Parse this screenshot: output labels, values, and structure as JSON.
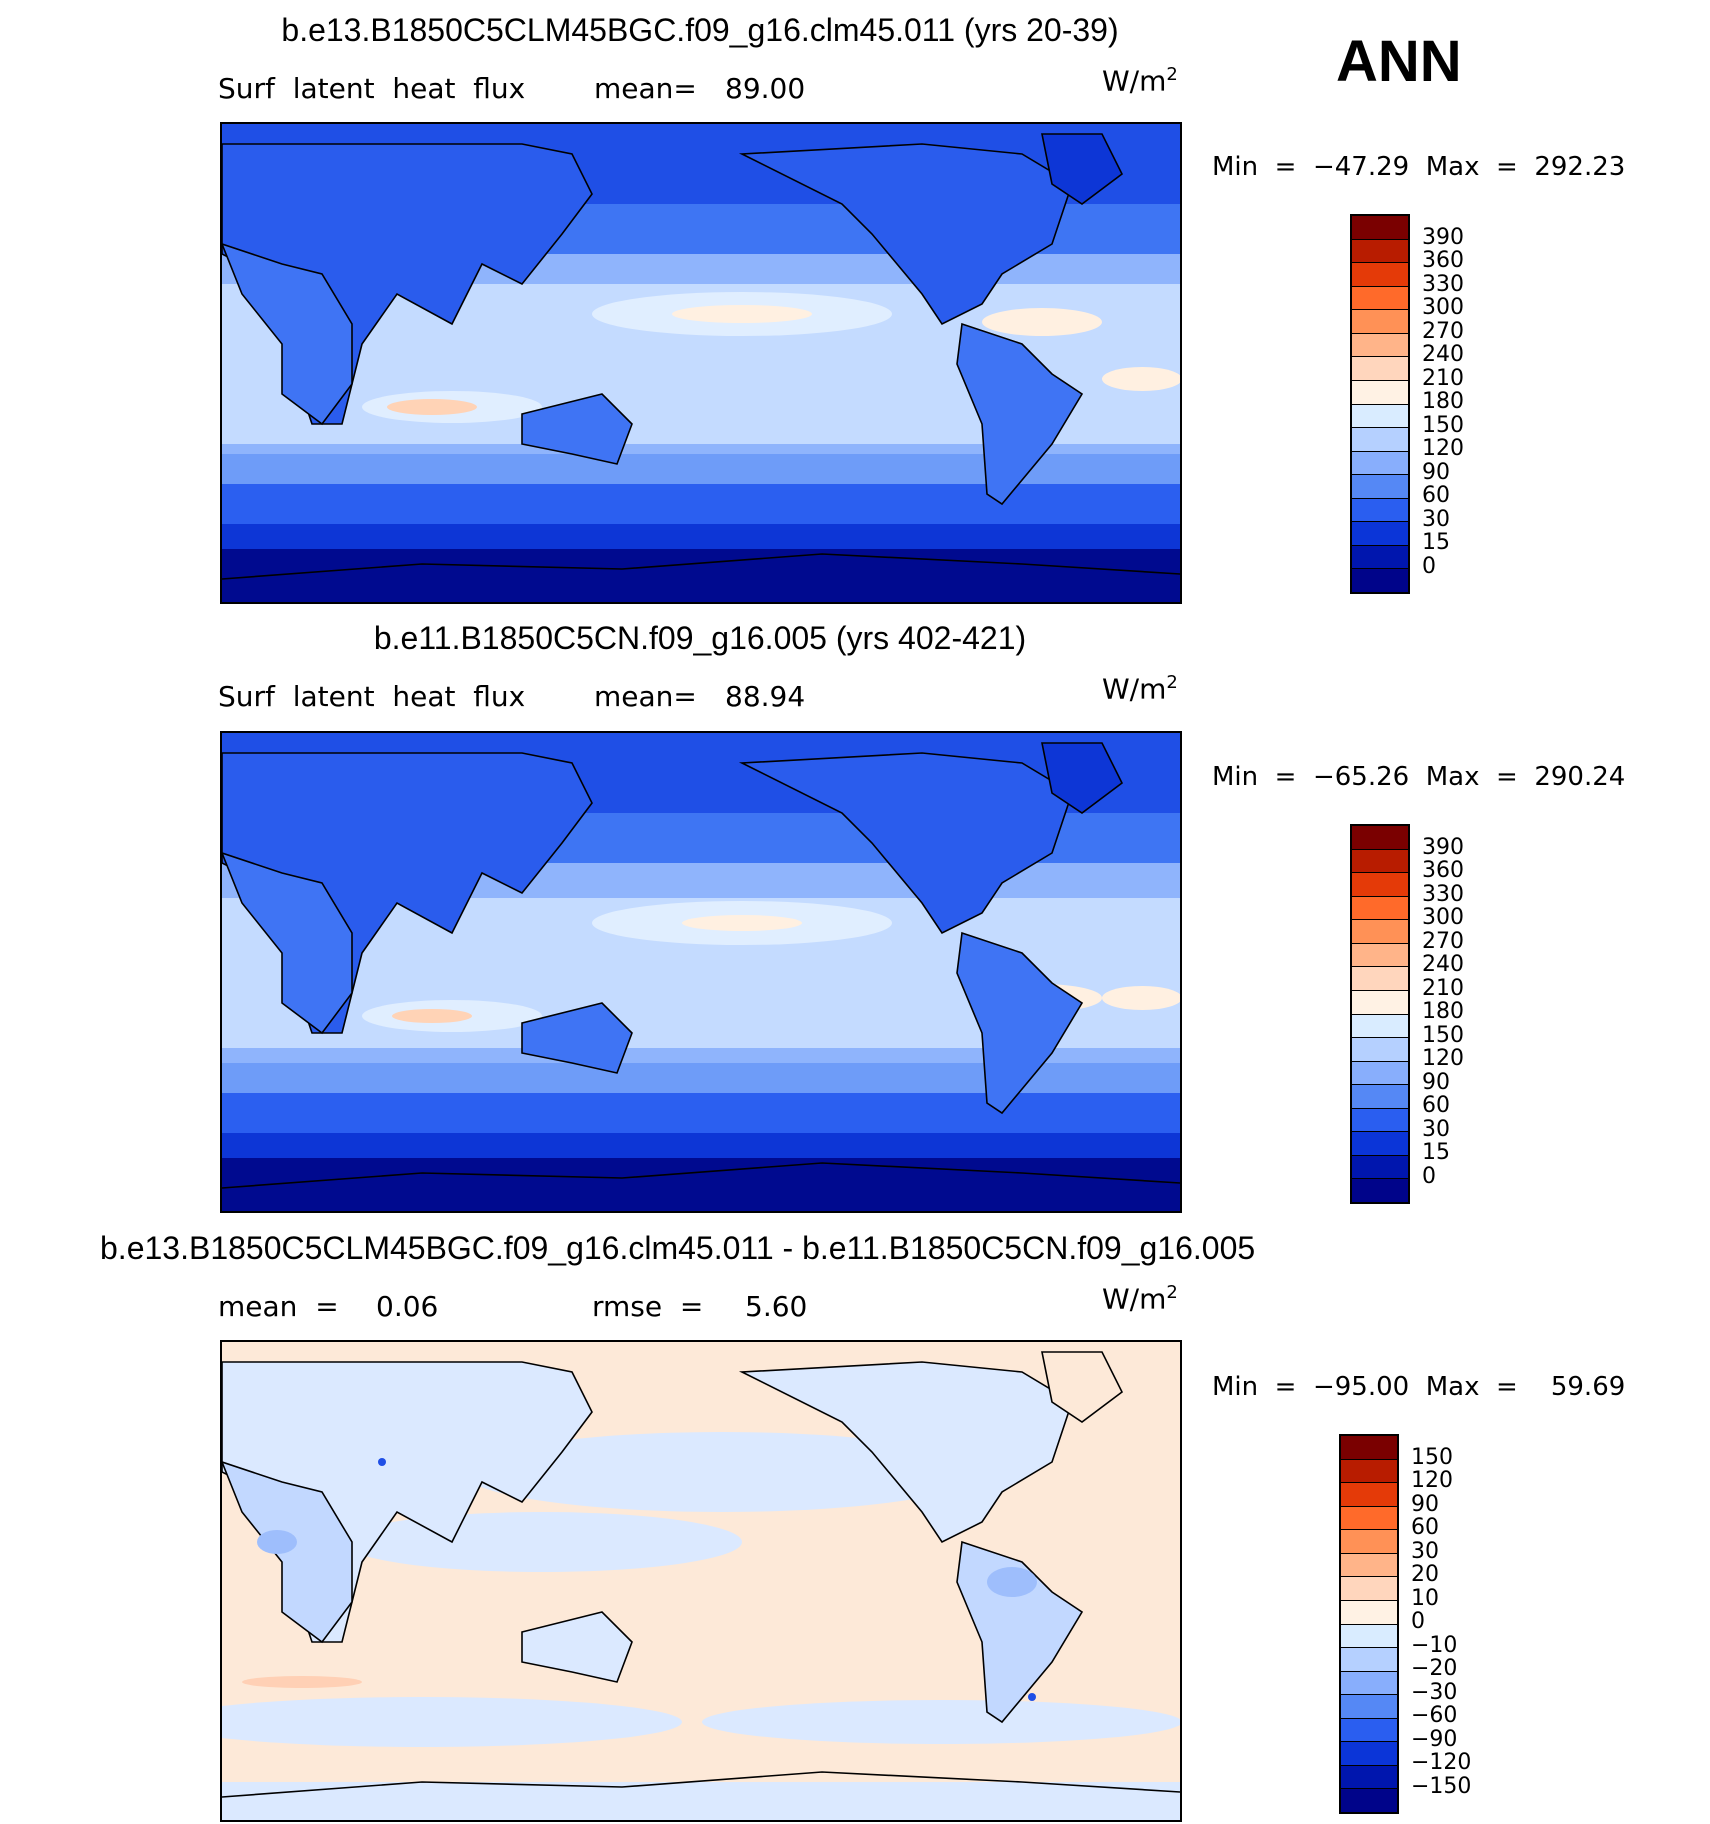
{
  "season": "ANN",
  "units_base": "W/m",
  "units_exp": "2",
  "panels": [
    {
      "title": "b.e13.B1850C5CLM45BGC.f09_g16.clm45.011 (yrs 20-39)",
      "left_label": "Surf  latent  heat  flux",
      "stat_label": "mean=",
      "stat_value": "89.00",
      "min_text": "Min  =  −47.29  Max  =  292.23",
      "colorbar_labels": [
        "390",
        "360",
        "330",
        "300",
        "270",
        "240",
        "210",
        "180",
        "150",
        "120",
        "90",
        "60",
        "30",
        "15",
        "0"
      ],
      "colors": [
        "#7a0000",
        "#b81c00",
        "#e43a08",
        "#ff6a2a",
        "#ff9156",
        "#ffb489",
        "#ffd6bd",
        "#fff2e4",
        "#d9ecff",
        "#b5d0ff",
        "#88aefc",
        "#5588f5",
        "#2a5ef0",
        "#0b35d8",
        "#0016ae",
        "#00048a"
      ]
    },
    {
      "title": "b.e11.B1850C5CN.f09_g16.005 (yrs 402-421)",
      "left_label": "Surf  latent  heat  flux",
      "stat_label": "mean=",
      "stat_value": "88.94",
      "min_text": "Min  =  −65.26  Max  =  290.24",
      "colorbar_labels": [
        "390",
        "360",
        "330",
        "300",
        "270",
        "240",
        "210",
        "180",
        "150",
        "120",
        "90",
        "60",
        "30",
        "15",
        "0"
      ],
      "colors": [
        "#7a0000",
        "#b81c00",
        "#e43a08",
        "#ff6a2a",
        "#ff9156",
        "#ffb489",
        "#ffd6bd",
        "#fff2e4",
        "#d9ecff",
        "#b5d0ff",
        "#88aefc",
        "#5588f5",
        "#2a5ef0",
        "#0b35d8",
        "#0016ae",
        "#00048a"
      ]
    },
    {
      "title": "b.e13.B1850C5CLM45BGC.f09_g16.clm45.011 - b.e11.B1850C5CN.f09_g16.005",
      "left_label": "mean  =",
      "left_value": "0.06",
      "stat_label": "rmse  =",
      "stat_value": "5.60",
      "min_text": "Min  =  −95.00  Max  =    59.69",
      "colorbar_labels": [
        "150",
        "120",
        "90",
        "60",
        "30",
        "20",
        "10",
        "0",
        "−10",
        "−20",
        "−30",
        "−60",
        "−90",
        "−120",
        "−150"
      ],
      "colors": [
        "#7a0000",
        "#b81c00",
        "#e43a08",
        "#ff6a2a",
        "#ff9156",
        "#ffb489",
        "#ffd6bd",
        "#fff2e4",
        "#d9ecff",
        "#b5d0ff",
        "#88aefc",
        "#5588f5",
        "#2a5ef0",
        "#0b35d8",
        "#0016ae",
        "#00048a"
      ]
    }
  ]
}
